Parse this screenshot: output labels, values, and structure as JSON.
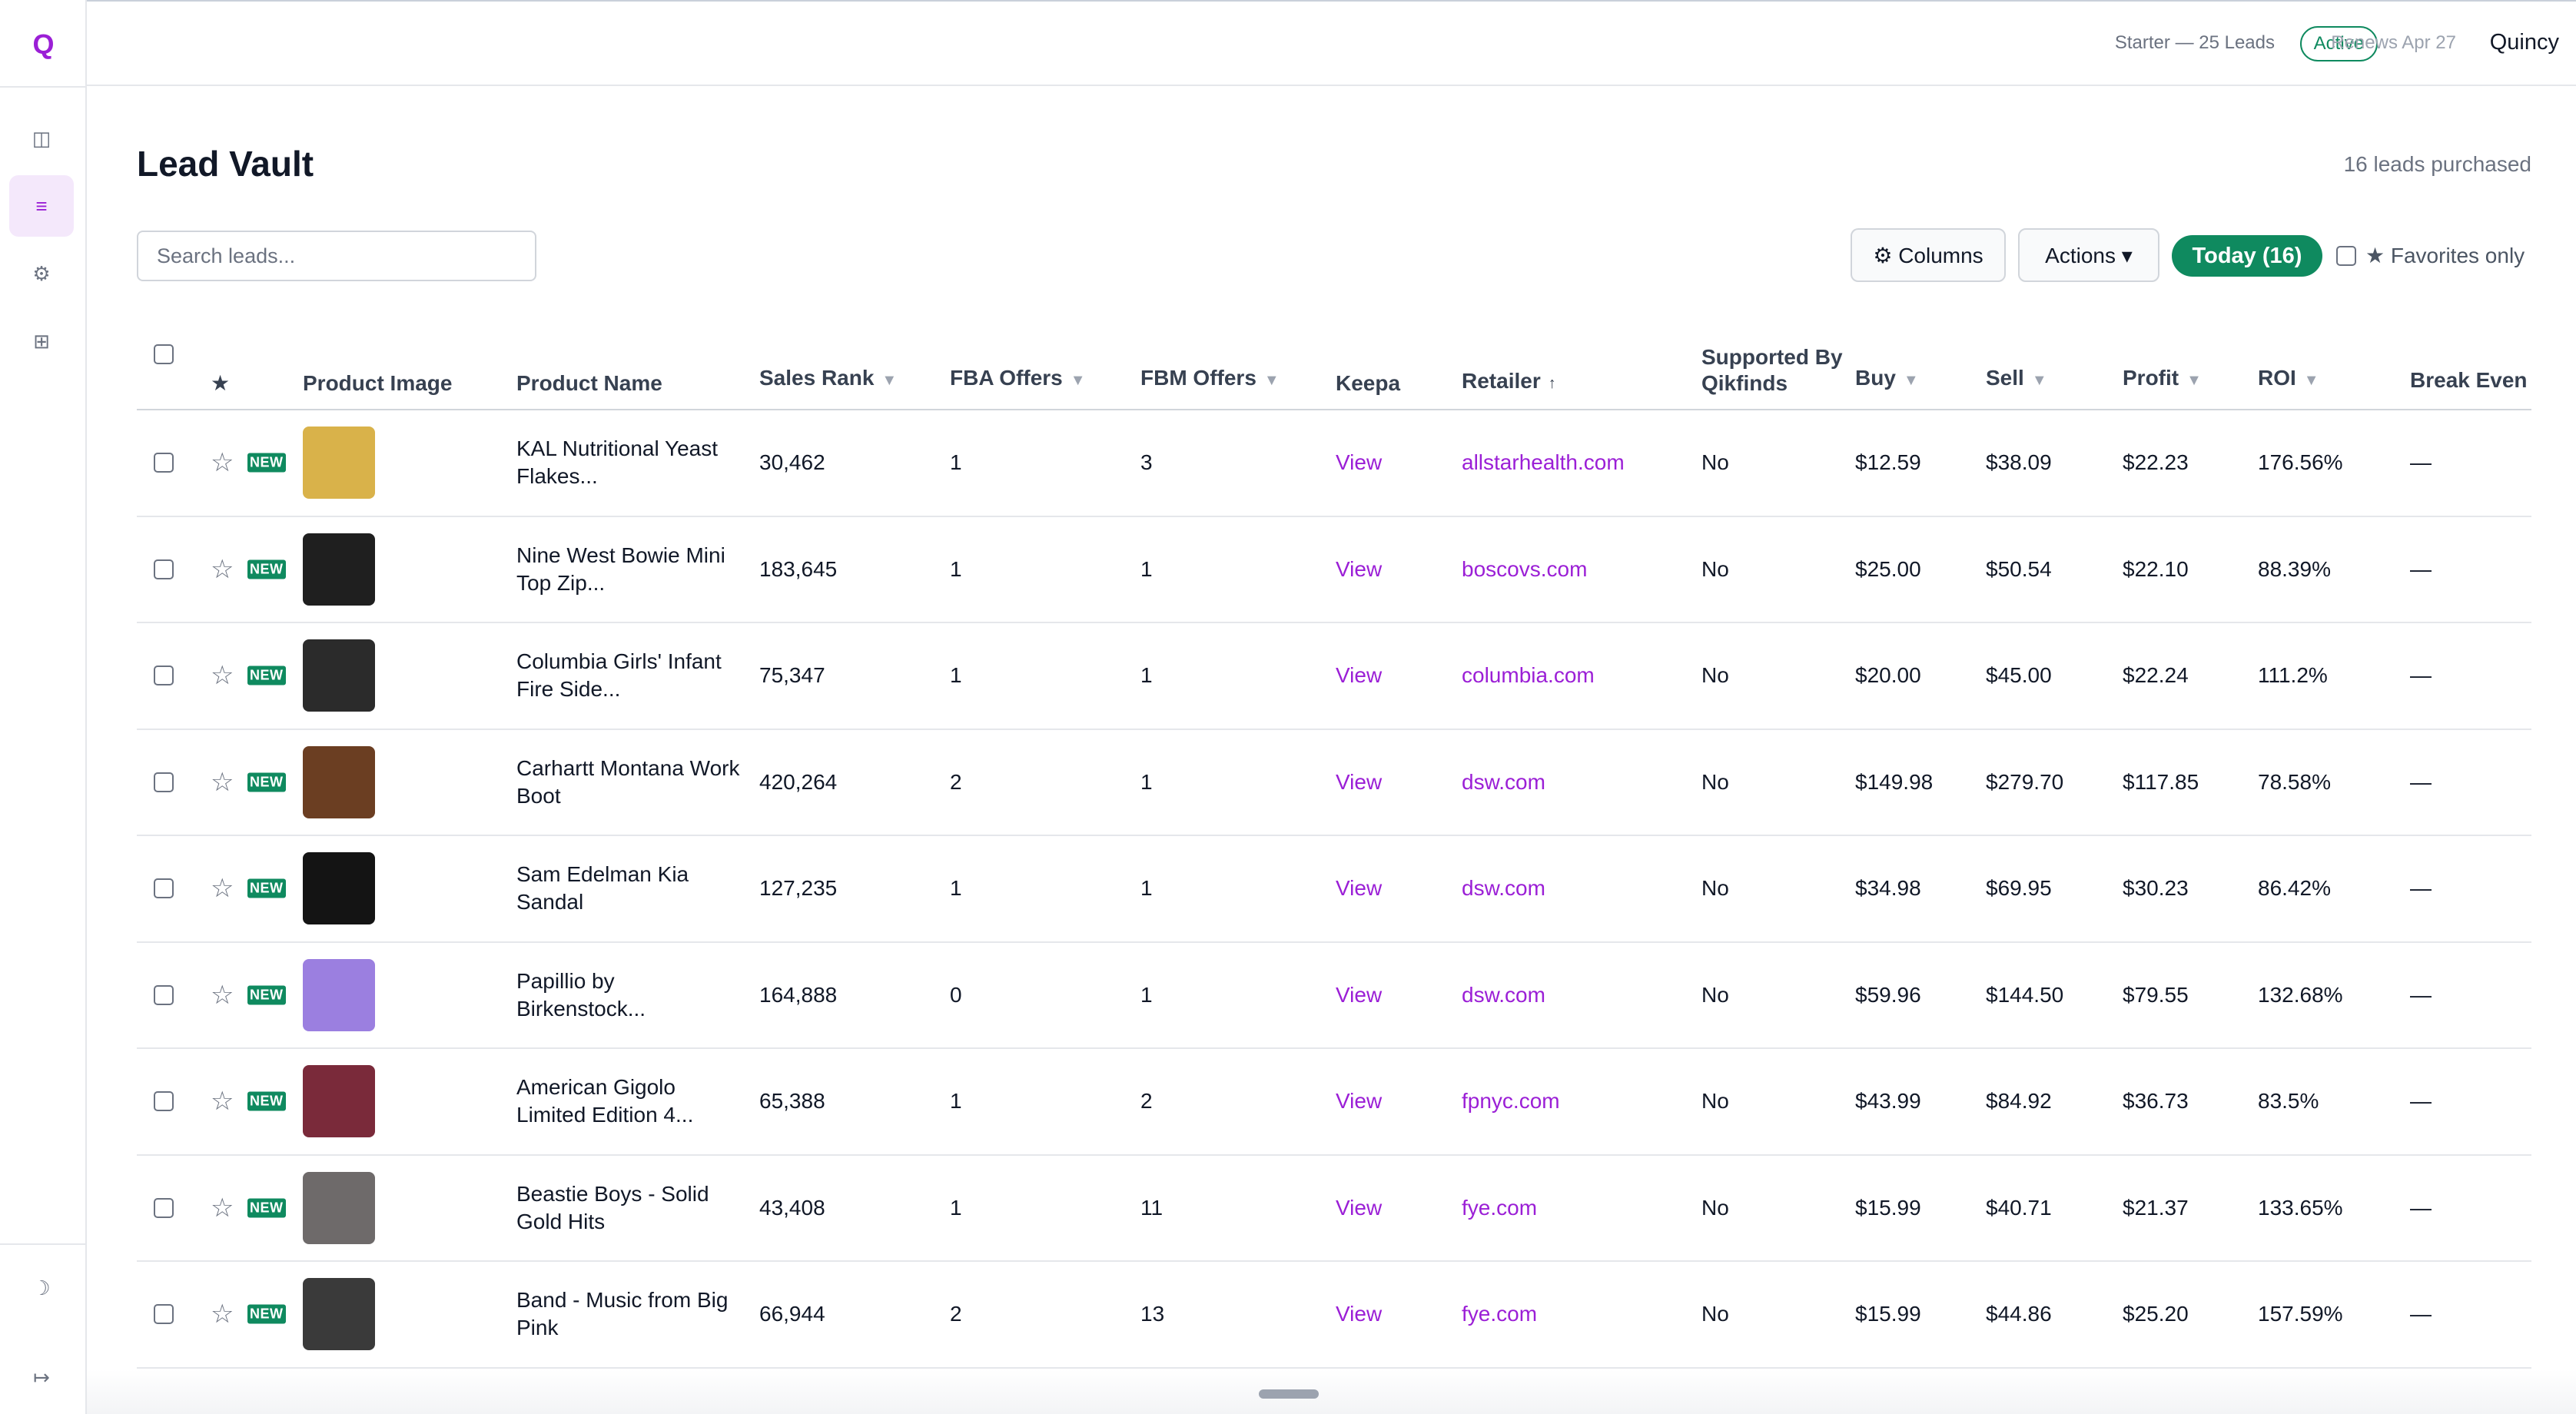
{
  "app": {
    "logo": "Q"
  },
  "sidebar": {
    "icons": [
      "panel-icon",
      "list-icon",
      "gear-icon",
      "grid-icon",
      "moon-icon",
      "collapse-icon"
    ]
  },
  "topbar": {
    "plan": "Starter — 25 Leads",
    "status": "Active",
    "renews": "Renews Apr 27",
    "user": "Quincy"
  },
  "page": {
    "title": "Lead Vault",
    "leads_count": "16 leads purchased"
  },
  "search": {
    "placeholder": "Search leads...",
    "value": ""
  },
  "toolbar": {
    "columns_label": "⚙ Columns",
    "actions_label": "Actions ▾",
    "today_label": "Today (16)",
    "favorites_label": "★ Favorites only"
  },
  "table": {
    "headers": {
      "star": "★",
      "image": "Product Image",
      "name": "Product Name",
      "sales_rank": "Sales Rank",
      "fba": "FBA Offers",
      "fbm": "FBM Offers",
      "keepa": "Keepa",
      "retailer": "Retailer",
      "supported": "Supported By Qikfinds",
      "buy": "Buy",
      "sell": "Sell",
      "profit": "Profit",
      "roi": "ROI",
      "break_even": "Break Even"
    },
    "sort_arrow_down": "▼",
    "sort_arrow_up": "↑",
    "badge": "NEW",
    "rows": [
      {
        "name": "KAL Nutritional Yeast Flakes...",
        "rank": "30,462",
        "fba": "1",
        "fbm": "3",
        "keepa": "View",
        "retailer": "allstarhealth.com",
        "supported": "No",
        "buy": "$12.59",
        "sell": "$38.09",
        "profit": "$22.23",
        "roi": "176.56%",
        "be": "—",
        "thumb": "#d9b24a"
      },
      {
        "name": "Nine West Bowie Mini Top Zip...",
        "rank": "183,645",
        "fba": "1",
        "fbm": "1",
        "keepa": "View",
        "retailer": "boscovs.com",
        "supported": "No",
        "buy": "$25.00",
        "sell": "$50.54",
        "profit": "$22.10",
        "roi": "88.39%",
        "be": "—",
        "thumb": "#1f1f1f"
      },
      {
        "name": "Columbia Girls' Infant Fire Side...",
        "rank": "75,347",
        "fba": "1",
        "fbm": "1",
        "keepa": "View",
        "retailer": "columbia.com",
        "supported": "No",
        "buy": "$20.00",
        "sell": "$45.00",
        "profit": "$22.24",
        "roi": "111.2%",
        "be": "—",
        "thumb": "#2b2b2b"
      },
      {
        "name": "Carhartt Montana Work Boot",
        "rank": "420,264",
        "fba": "2",
        "fbm": "1",
        "keepa": "View",
        "retailer": "dsw.com",
        "supported": "No",
        "buy": "$149.98",
        "sell": "$279.70",
        "profit": "$117.85",
        "roi": "78.58%",
        "be": "—",
        "thumb": "#6b3e22"
      },
      {
        "name": "Sam Edelman Kia Sandal",
        "rank": "127,235",
        "fba": "1",
        "fbm": "1",
        "keepa": "View",
        "retailer": "dsw.com",
        "supported": "No",
        "buy": "$34.98",
        "sell": "$69.95",
        "profit": "$30.23",
        "roi": "86.42%",
        "be": "—",
        "thumb": "#141414"
      },
      {
        "name": "Papillio by Birkenstock...",
        "rank": "164,888",
        "fba": "0",
        "fbm": "1",
        "keepa": "View",
        "retailer": "dsw.com",
        "supported": "No",
        "buy": "$59.96",
        "sell": "$144.50",
        "profit": "$79.55",
        "roi": "132.68%",
        "be": "—",
        "thumb": "#9b7fe0"
      },
      {
        "name": "American Gigolo Limited Edition 4...",
        "rank": "65,388",
        "fba": "1",
        "fbm": "2",
        "keepa": "View",
        "retailer": "fpnyc.com",
        "supported": "No",
        "buy": "$43.99",
        "sell": "$84.92",
        "profit": "$36.73",
        "roi": "83.5%",
        "be": "—",
        "thumb": "#7a2a3a"
      },
      {
        "name": "Beastie Boys - Solid Gold Hits",
        "rank": "43,408",
        "fba": "1",
        "fbm": "11",
        "keepa": "View",
        "retailer": "fye.com",
        "supported": "No",
        "buy": "$15.99",
        "sell": "$40.71",
        "profit": "$21.37",
        "roi": "133.65%",
        "be": "—",
        "thumb": "#6e6a6a"
      },
      {
        "name": "Band - Music from Big Pink",
        "rank": "66,944",
        "fba": "2",
        "fbm": "13",
        "keepa": "View",
        "retailer": "fye.com",
        "supported": "No",
        "buy": "$15.99",
        "sell": "$44.86",
        "profit": "$25.20",
        "roi": "157.59%",
        "be": "—",
        "thumb": "#3a3a3a"
      }
    ]
  }
}
